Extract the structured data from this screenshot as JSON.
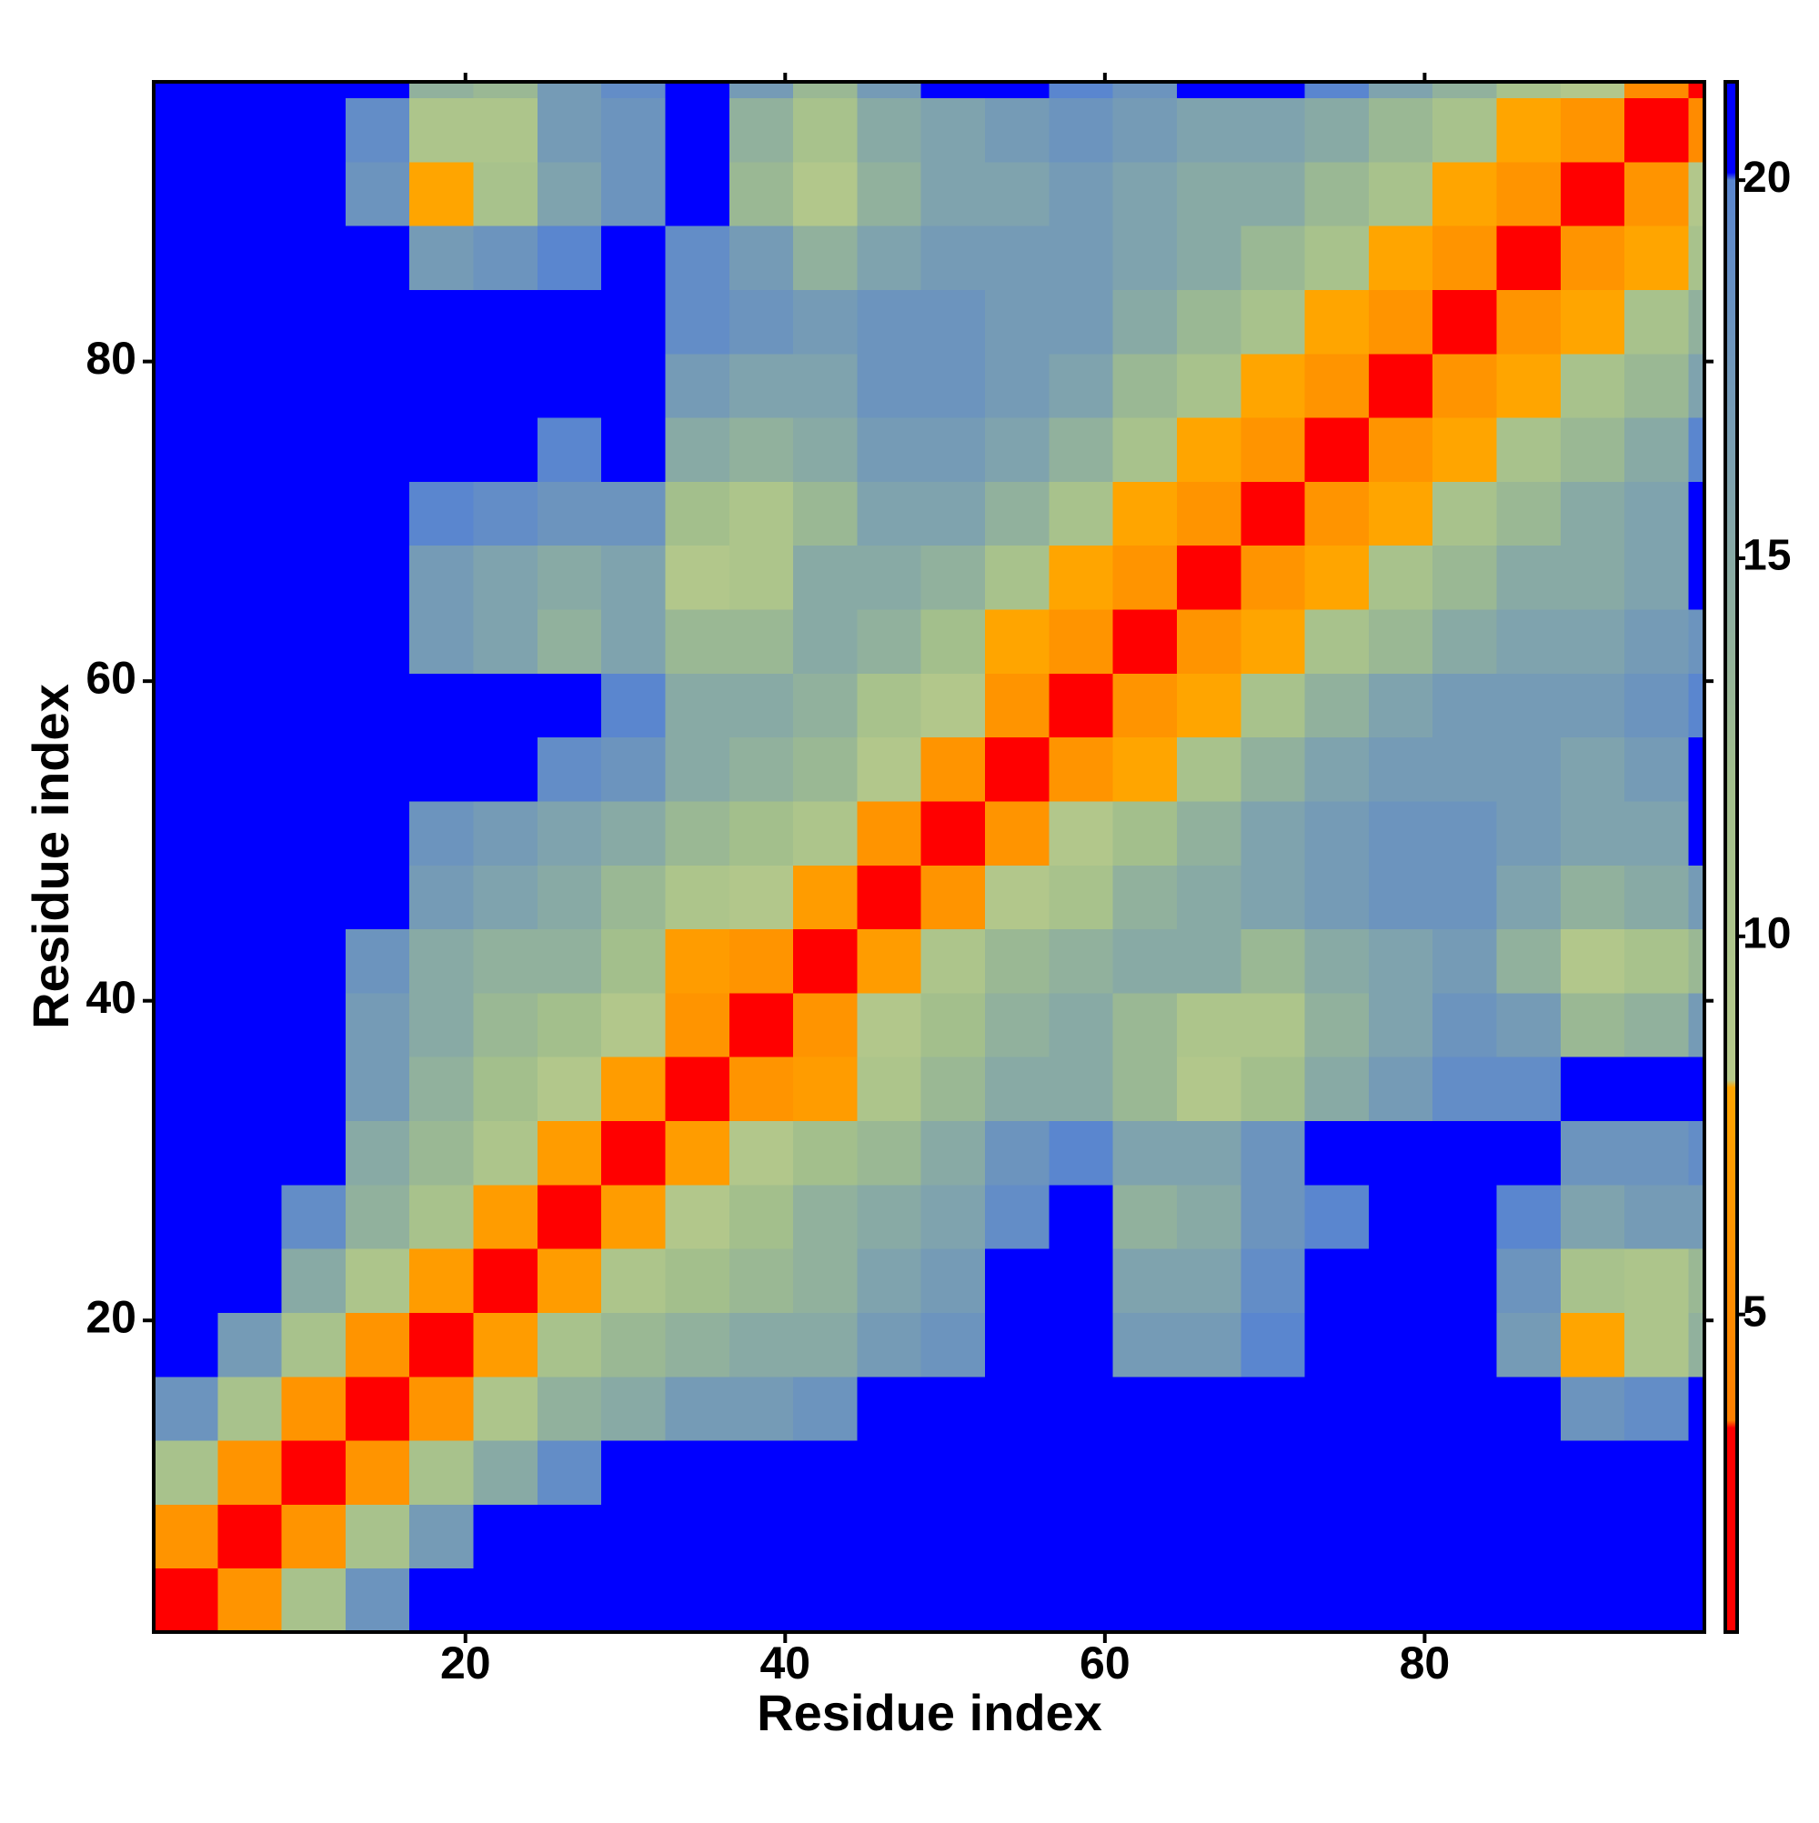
{
  "chart_data": {
    "type": "heatmap",
    "xlabel": "Residue index",
    "ylabel": "Residue index",
    "bins": [
      0.5,
      4.5,
      8.5,
      12.5,
      16.5,
      20.5,
      24.5,
      28.5,
      32.5,
      36.5,
      40.5,
      44.5,
      48.5,
      52.5,
      56.5,
      60.5,
      64.5,
      68.5,
      72.5,
      76.5,
      80.5,
      84.5,
      88.5,
      92.5,
      96.5,
      97.5
    ],
    "xlim": [
      0.5,
      97.5
    ],
    "ylim": [
      0.5,
      97.5
    ],
    "xticks": [
      20,
      40,
      60,
      80
    ],
    "yticks": [
      20,
      40,
      60,
      80
    ],
    "values": [
      [
        3,
        6,
        11,
        18,
        21,
        21,
        21,
        21,
        21,
        21,
        21,
        21,
        21,
        21,
        21,
        21,
        21,
        21,
        21,
        21,
        21,
        21,
        21,
        21,
        21
      ],
      [
        6,
        3,
        6,
        11,
        17,
        21,
        21,
        21,
        21,
        21,
        21,
        21,
        21,
        21,
        21,
        21,
        21,
        21,
        21,
        21,
        21,
        21,
        21,
        21,
        21
      ],
      [
        11,
        6,
        3,
        6,
        11,
        15,
        19,
        21,
        21,
        21,
        21,
        21,
        21,
        21,
        21,
        21,
        21,
        21,
        21,
        21,
        21,
        21,
        21,
        21,
        21
      ],
      [
        18,
        11,
        6,
        3,
        6,
        10,
        14,
        15,
        17,
        17,
        18,
        21,
        21,
        21,
        21,
        21,
        21,
        21,
        21,
        21,
        21,
        21,
        18,
        19,
        21
      ],
      [
        21,
        17,
        11,
        6,
        3,
        7,
        11,
        13,
        14,
        15,
        15,
        17,
        18,
        21,
        21,
        17,
        17,
        20,
        21,
        21,
        21,
        17,
        8,
        10,
        14
      ],
      [
        21,
        21,
        15,
        10,
        7,
        3,
        7,
        10,
        12,
        13,
        14,
        16,
        17,
        21,
        21,
        16,
        16,
        19,
        21,
        21,
        21,
        18,
        11,
        10,
        13
      ],
      [
        21,
        21,
        19,
        14,
        11,
        7,
        3,
        7,
        9,
        12,
        14,
        15,
        16,
        19,
        21,
        14,
        15,
        18,
        20,
        21,
        21,
        20,
        16,
        17,
        17
      ],
      [
        21,
        21,
        21,
        15,
        13,
        10,
        7,
        3,
        7,
        9,
        12,
        13,
        15,
        18,
        20,
        16,
        16,
        18,
        21,
        21,
        21,
        21,
        18,
        18,
        19
      ],
      [
        21,
        21,
        21,
        17,
        14,
        12,
        9,
        7,
        3,
        6,
        7,
        10,
        13,
        15,
        15,
        13,
        9,
        12,
        15,
        17,
        19,
        19,
        21,
        21,
        21
      ],
      [
        21,
        21,
        21,
        17,
        15,
        13,
        12,
        9,
        6,
        3,
        6,
        9,
        12,
        14,
        15,
        13,
        10,
        10,
        14,
        16,
        18,
        17,
        13,
        14,
        17
      ],
      [
        21,
        21,
        21,
        18,
        15,
        14,
        14,
        12,
        7,
        6,
        3,
        7,
        10,
        13,
        14,
        15,
        15,
        13,
        15,
        16,
        17,
        14,
        9,
        11,
        13
      ],
      [
        21,
        21,
        21,
        21,
        17,
        16,
        15,
        13,
        10,
        9,
        7,
        3,
        6,
        9,
        11,
        14,
        15,
        16,
        17,
        18,
        18,
        16,
        14,
        15,
        17
      ],
      [
        21,
        21,
        21,
        21,
        18,
        17,
        16,
        15,
        13,
        12,
        10,
        6,
        3,
        6,
        9,
        12,
        14,
        16,
        17,
        18,
        18,
        17,
        16,
        16,
        21
      ],
      [
        21,
        21,
        21,
        21,
        21,
        21,
        19,
        18,
        15,
        14,
        13,
        9,
        6,
        3,
        6,
        8,
        11,
        14,
        16,
        17,
        17,
        17,
        16,
        17,
        21
      ],
      [
        21,
        21,
        21,
        21,
        21,
        21,
        21,
        20,
        15,
        15,
        14,
        11,
        9,
        6,
        3,
        6,
        8,
        11,
        14,
        16,
        17,
        17,
        17,
        18,
        20
      ],
      [
        21,
        21,
        21,
        21,
        17,
        16,
        14,
        16,
        13,
        13,
        15,
        14,
        12,
        8,
        6,
        3,
        6,
        8,
        11,
        13,
        15,
        16,
        16,
        17,
        18
      ],
      [
        21,
        21,
        21,
        21,
        17,
        16,
        15,
        16,
        9,
        10,
        15,
        15,
        14,
        11,
        8,
        6,
        3,
        6,
        8,
        11,
        13,
        15,
        15,
        16,
        21
      ],
      [
        21,
        21,
        21,
        21,
        20,
        19,
        18,
        18,
        12,
        10,
        13,
        16,
        16,
        14,
        11,
        8,
        6,
        3,
        6,
        8,
        11,
        13,
        15,
        16,
        21
      ],
      [
        21,
        21,
        21,
        21,
        21,
        21,
        20,
        21,
        15,
        14,
        15,
        17,
        17,
        16,
        14,
        11,
        8,
        6,
        3,
        6,
        8,
        11,
        13,
        15,
        20
      ],
      [
        21,
        21,
        21,
        21,
        21,
        21,
        21,
        21,
        17,
        16,
        16,
        18,
        18,
        17,
        16,
        13,
        11,
        8,
        6,
        3,
        6,
        8,
        11,
        13,
        16
      ],
      [
        21,
        21,
        21,
        21,
        21,
        21,
        21,
        21,
        19,
        18,
        17,
        18,
        18,
        17,
        17,
        15,
        13,
        11,
        8,
        6,
        3,
        6,
        8,
        11,
        14
      ],
      [
        21,
        21,
        21,
        21,
        17,
        18,
        20,
        21,
        19,
        17,
        14,
        16,
        17,
        17,
        17,
        16,
        15,
        13,
        11,
        8,
        6,
        3,
        6,
        8,
        11
      ],
      [
        21,
        21,
        21,
        18,
        8,
        11,
        16,
        18,
        21,
        13,
        9,
        14,
        16,
        16,
        17,
        16,
        15,
        15,
        13,
        11,
        8,
        6,
        3,
        6,
        9
      ],
      [
        21,
        21,
        21,
        19,
        10,
        10,
        17,
        18,
        21,
        14,
        11,
        15,
        16,
        17,
        18,
        17,
        16,
        16,
        15,
        13,
        11,
        8,
        6,
        3,
        5
      ],
      [
        21,
        21,
        21,
        21,
        14,
        13,
        17,
        19,
        21,
        17,
        13,
        17,
        21,
        21,
        20,
        18,
        21,
        21,
        20,
        16,
        14,
        11,
        9,
        5,
        3
      ]
    ],
    "colorbar": {
      "lim": [
        0.8,
        21.3
      ],
      "ticks": [
        5,
        10,
        15,
        20
      ]
    },
    "colorscale": [
      [
        0.8,
        "#ff0000"
      ],
      [
        3.5,
        "#ff0000"
      ],
      [
        3.6,
        "#ff7f00"
      ],
      [
        8,
        "#ffa500"
      ],
      [
        8.1,
        "#b7ca8b"
      ],
      [
        12,
        "#a3bf8c"
      ],
      [
        20,
        "#5a86cf"
      ],
      [
        20.1,
        "#0000ff"
      ],
      [
        21.3,
        "#0000ff"
      ]
    ]
  }
}
